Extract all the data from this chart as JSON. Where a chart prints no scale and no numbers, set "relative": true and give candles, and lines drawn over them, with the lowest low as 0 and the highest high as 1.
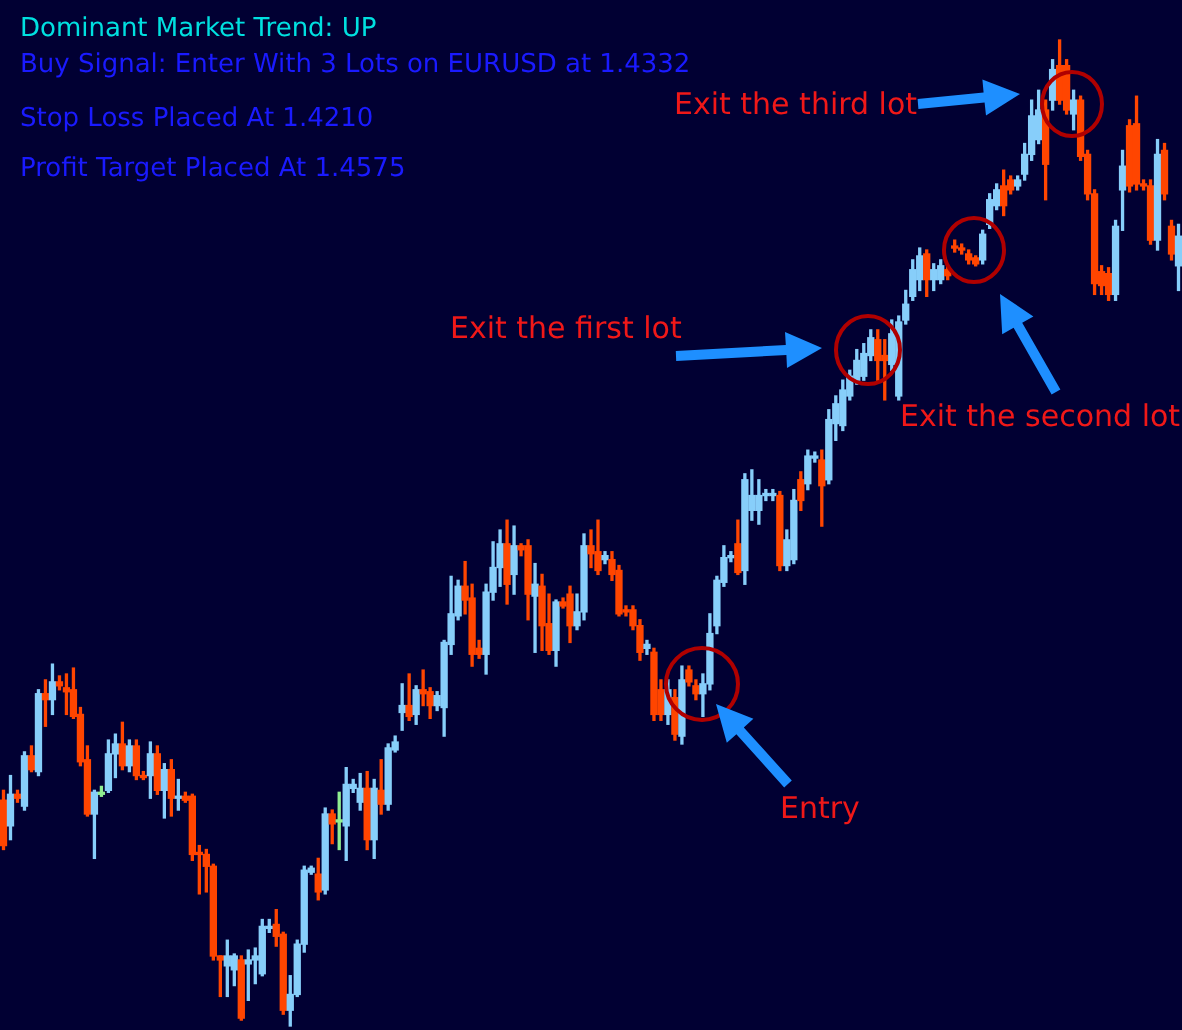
{
  "chart_data": {
    "type": "candlestick",
    "title": "Dominant Market Trend: UP",
    "annotations": [
      "Buy Signal: Enter With 3 Lots on EURUSD at 1.4332",
      "Stop Loss Placed At 1.4210",
      "Profit Target Placed At 1.4575",
      "Exit the third lot",
      "Exit the first lot",
      "Exit the second lot",
      "Entry"
    ],
    "relative": true,
    "categories": [
      null,
      null,
      null,
      null,
      null,
      null,
      null,
      null,
      null,
      null,
      null,
      null,
      null,
      null,
      null,
      null,
      null,
      null,
      null,
      null,
      null,
      null,
      null,
      null,
      null,
      null,
      null,
      null,
      null,
      null,
      null,
      null,
      null,
      null,
      null,
      null,
      null,
      null,
      null,
      null,
      null,
      null,
      null,
      null,
      null,
      null,
      null,
      null,
      null,
      null,
      null,
      null,
      null,
      null,
      null,
      null,
      null,
      null,
      null,
      null,
      null,
      null,
      null,
      null,
      null,
      null,
      null,
      null,
      null,
      null,
      null,
      null,
      null,
      null,
      null,
      null,
      null,
      null,
      null,
      null,
      null,
      null,
      null,
      null,
      null,
      null,
      null,
      null,
      null,
      null,
      null,
      null,
      null,
      null,
      null,
      null,
      null,
      null,
      null,
      null,
      null,
      null,
      null,
      null,
      null,
      null,
      null,
      null,
      null,
      null,
      null,
      null,
      null,
      null,
      null,
      null,
      null,
      null,
      null,
      null,
      null,
      null,
      null,
      null,
      null,
      null,
      null,
      null,
      null,
      null,
      null,
      null,
      null,
      null,
      null,
      null,
      null,
      null,
      null,
      null,
      null,
      null,
      null,
      null,
      null,
      null,
      null,
      null,
      null,
      null,
      null,
      null,
      null,
      null,
      null,
      null,
      null,
      null,
      null,
      null,
      null,
      null,
      null,
      null,
      null,
      null,
      null,
      null,
      null
    ],
    "ohlc": [
      [
        0.229,
        0.239,
        0.179,
        0.183
      ],
      [
        0.203,
        0.254,
        0.189,
        0.235
      ],
      [
        0.235,
        0.239,
        0.227,
        0.231
      ],
      [
        0.223,
        0.278,
        0.219,
        0.274
      ],
      [
        0.274,
        0.284,
        0.258,
        0.26
      ],
      [
        0.258,
        0.341,
        0.254,
        0.337
      ],
      [
        0.337,
        0.351,
        0.304,
        0.331
      ],
      [
        0.331,
        0.367,
        0.316,
        0.349
      ],
      [
        0.349,
        0.355,
        0.341,
        0.345
      ],
      [
        0.343,
        0.357,
        0.316,
        0.339
      ],
      [
        0.341,
        0.363,
        0.312,
        0.314
      ],
      [
        0.316,
        0.323,
        0.264,
        0.268
      ],
      [
        0.27,
        0.284,
        0.213,
        0.215
      ],
      [
        0.215,
        0.239,
        0.17,
        0.237
      ],
      [
        0.235,
        0.243,
        0.233,
        0.237
      ],
      [
        0.239,
        0.29,
        0.237,
        0.276
      ],
      [
        0.276,
        0.296,
        0.252,
        0.286
      ],
      [
        0.286,
        0.308,
        0.26,
        0.264
      ],
      [
        0.264,
        0.29,
        0.258,
        0.284
      ],
      [
        0.284,
        0.29,
        0.25,
        0.254
      ],
      [
        0.254,
        0.258,
        0.25,
        0.252
      ],
      [
        0.254,
        0.288,
        0.231,
        0.276
      ],
      [
        0.276,
        0.284,
        0.235,
        0.239
      ],
      [
        0.239,
        0.266,
        0.211,
        0.26
      ],
      [
        0.26,
        0.27,
        0.213,
        0.231
      ],
      [
        0.231,
        0.25,
        0.219,
        0.233
      ],
      [
        0.233,
        0.237,
        0.227,
        0.229
      ],
      [
        0.233,
        0.235,
        0.168,
        0.174
      ],
      [
        0.176,
        0.183,
        0.134,
        0.174
      ],
      [
        0.174,
        0.179,
        0.136,
        0.162
      ],
      [
        0.162,
        0.164,
        0.067,
        0.071
      ],
      [
        0.071,
        0.071,
        0.03,
        0.067
      ],
      [
        0.061,
        0.087,
        0.03,
        0.071
      ],
      [
        0.057,
        0.073,
        0.041,
        0.071
      ],
      [
        0.067,
        0.071,
        0.006,
        0.008
      ],
      [
        0.063,
        0.077,
        0.026,
        0.067
      ],
      [
        0.067,
        0.079,
        0.043,
        0.071
      ],
      [
        0.053,
        0.108,
        0.051,
        0.101
      ],
      [
        0.099,
        0.108,
        0.095,
        0.101
      ],
      [
        0.103,
        0.118,
        0.081,
        0.091
      ],
      [
        0.093,
        0.095,
        0.012,
        0.016
      ],
      [
        0.016,
        0.051,
        0,
        0.032
      ],
      [
        0.032,
        0.087,
        0.03,
        0.083
      ],
      [
        0.083,
        0.162,
        0.075,
        0.158
      ],
      [
        0.156,
        0.162,
        0.154,
        0.16
      ],
      [
        0.154,
        0.17,
        0.128,
        0.136
      ],
      [
        0.138,
        0.221,
        0.134,
        0.215
      ],
      [
        0.215,
        0.219,
        0.185,
        0.205
      ],
      [
        0.207,
        0.237,
        0.179,
        0.209
      ],
      [
        0.203,
        0.262,
        0.168,
        0.245
      ],
      [
        0.241,
        0.25,
        0.237,
        0.245
      ],
      [
        0.227,
        0.256,
        0.219,
        0.241
      ],
      [
        0.241,
        0.258,
        0.179,
        0.189
      ],
      [
        0.189,
        0.25,
        0.17,
        0.241
      ],
      [
        0.239,
        0.27,
        0.215,
        0.225
      ],
      [
        0.225,
        0.286,
        0.219,
        0.282
      ],
      [
        0.28,
        0.294,
        0.278,
        0.288
      ],
      [
        0.318,
        0.347,
        0.3,
        0.325
      ],
      [
        0.325,
        0.357,
        0.31,
        0.314
      ],
      [
        0.316,
        0.345,
        0.306,
        0.341
      ],
      [
        0.341,
        0.361,
        0.325,
        0.337
      ],
      [
        0.339,
        0.343,
        0.312,
        0.325
      ],
      [
        0.325,
        0.339,
        0.32,
        0.335
      ],
      [
        0.323,
        0.391,
        0.294,
        0.389
      ],
      [
        0.387,
        0.456,
        0.377,
        0.418
      ],
      [
        0.416,
        0.452,
        0.412,
        0.446
      ],
      [
        0.446,
        0.471,
        0.418,
        0.432
      ],
      [
        0.434,
        0.448,
        0.365,
        0.377
      ],
      [
        0.383,
        0.391,
        0.373,
        0.377
      ],
      [
        0.377,
        0.448,
        0.357,
        0.44
      ],
      [
        0.44,
        0.491,
        0.432,
        0.465
      ],
      [
        0.465,
        0.503,
        0.446,
        0.489
      ],
      [
        0.489,
        0.513,
        0.428,
        0.448
      ],
      [
        0.458,
        0.507,
        0.438,
        0.487
      ],
      [
        0.487,
        0.489,
        0.477,
        0.483
      ],
      [
        0.487,
        0.493,
        0.412,
        0.438
      ],
      [
        0.436,
        0.469,
        0.379,
        0.448
      ],
      [
        0.446,
        0.458,
        0.381,
        0.406
      ],
      [
        0.408,
        0.438,
        0.377,
        0.381
      ],
      [
        0.381,
        0.432,
        0.365,
        0.43
      ],
      [
        0.43,
        0.434,
        0.424,
        0.426
      ],
      [
        0.438,
        0.446,
        0.389,
        0.406
      ],
      [
        0.406,
        0.438,
        0.402,
        0.42
      ],
      [
        0.42,
        0.499,
        0.412,
        0.487
      ],
      [
        0.487,
        0.503,
        0.465,
        0.479
      ],
      [
        0.481,
        0.513,
        0.458,
        0.462
      ],
      [
        0.473,
        0.481,
        0.469,
        0.477
      ],
      [
        0.473,
        0.481,
        0.452,
        0.458
      ],
      [
        0.462,
        0.467,
        0.416,
        0.418
      ],
      [
        0.422,
        0.426,
        0.416,
        0.42
      ],
      [
        0.422,
        0.426,
        0.402,
        0.406
      ],
      [
        0.406,
        0.412,
        0.371,
        0.379
      ],
      [
        0.383,
        0.391,
        0.377,
        0.387
      ],
      [
        0.379,
        0.383,
        0.31,
        0.316
      ],
      [
        0.341,
        0.351,
        0.31,
        0.316
      ],
      [
        0.316,
        0.351,
        0.306,
        0.341
      ],
      [
        0.333,
        0.341,
        0.29,
        0.296
      ],
      [
        0.294,
        0.365,
        0.286,
        0.351
      ],
      [
        0.361,
        0.365,
        0.345,
        0.349
      ],
      [
        0.345,
        0.351,
        0.331,
        0.337
      ],
      [
        0.337,
        0.357,
        0.314,
        0.347
      ],
      [
        0.347,
        0.418,
        0.341,
        0.398
      ],
      [
        0.406,
        0.456,
        0.398,
        0.452
      ],
      [
        0.45,
        0.487,
        0.446,
        0.475
      ],
      [
        0.475,
        0.481,
        0.471,
        0.477
      ],
      [
        0.489,
        0.513,
        0.458,
        0.46
      ],
      [
        0.462,
        0.56,
        0.448,
        0.554
      ],
      [
        0.523,
        0.564,
        0.513,
        0.538
      ],
      [
        0.523,
        0.554,
        0.509,
        0.538
      ],
      [
        0.538,
        0.544,
        0.533,
        0.54
      ],
      [
        0.538,
        0.544,
        0.533,
        0.54
      ],
      [
        0.538,
        0.542,
        0.462,
        0.467
      ],
      [
        0.467,
        0.503,
        0.462,
        0.493
      ],
      [
        0.473,
        0.544,
        0.469,
        0.533
      ],
      [
        0.554,
        0.562,
        0.523,
        0.533
      ],
      [
        0.55,
        0.584,
        0.544,
        0.578
      ],
      [
        0.576,
        0.582,
        0.572,
        0.578
      ],
      [
        0.574,
        0.584,
        0.507,
        0.548
      ],
      [
        0.554,
        0.625,
        0.55,
        0.615
      ],
      [
        0.611,
        0.639,
        0.594,
        0.631
      ],
      [
        0.609,
        0.655,
        0.604,
        0.645
      ],
      [
        0.639,
        0.665,
        0.635,
        0.659
      ],
      [
        0.655,
        0.686,
        0.651,
        0.675
      ],
      [
        0.659,
        0.692,
        0.655,
        0.682
      ],
      [
        0.68,
        0.706,
        0.675,
        0.698
      ],
      [
        0.696,
        0.706,
        0.655,
        0.675
      ],
      [
        0.68,
        0.696,
        0.635,
        0.675
      ],
      [
        0.671,
        0.716,
        0.665,
        0.702
      ],
      [
        0.639,
        0.72,
        0.635,
        0.714
      ],
      [
        0.716,
        0.746,
        0.712,
        0.732
      ],
      [
        0.74,
        0.777,
        0.736,
        0.767
      ],
      [
        0.757,
        0.789,
        0.746,
        0.781
      ],
      [
        0.783,
        0.787,
        0.74,
        0.757
      ],
      [
        0.757,
        0.773,
        0.746,
        0.767
      ],
      [
        0.757,
        0.777,
        0.753,
        0.771
      ],
      [
        0.767,
        0.771,
        0.757,
        0.761
      ],
      [
        0.791,
        0.797,
        0.785,
        0.789
      ],
      [
        0.789,
        0.793,
        0.783,
        0.787
      ],
      [
        0.783,
        0.787,
        0.773,
        0.777
      ],
      [
        0.779,
        0.781,
        0.771,
        0.773
      ],
      [
        0.777,
        0.807,
        0.773,
        0.803
      ],
      [
        0.813,
        0.844,
        0.809,
        0.838
      ],
      [
        0.832,
        0.854,
        0.828,
        0.848
      ],
      [
        0.852,
        0.868,
        0.822,
        0.832
      ],
      [
        0.858,
        0.862,
        0.844,
        0.848
      ],
      [
        0.852,
        0.862,
        0.848,
        0.858
      ],
      [
        0.864,
        0.895,
        0.858,
        0.884
      ],
      [
        0.884,
        0.939,
        0.878,
        0.923
      ],
      [
        0.899,
        0.949,
        0.895,
        0.929
      ],
      [
        0.929,
        0.939,
        0.838,
        0.874
      ],
      [
        0.939,
        0.98,
        0.929,
        0.97
      ],
      [
        0.974,
        1,
        0.935,
        0.939
      ],
      [
        0.974,
        0.98,
        0.925,
        0.929
      ],
      [
        0.925,
        0.949,
        0.909,
        0.939
      ],
      [
        0.939,
        0.943,
        0.878,
        0.882
      ],
      [
        0.884,
        0.888,
        0.838,
        0.844
      ],
      [
        0.844,
        0.848,
        0.742,
        0.753
      ],
      [
        0.765,
        0.771,
        0.742,
        0.751
      ],
      [
        0.763,
        0.769,
        0.736,
        0.742
      ],
      [
        0.742,
        0.817,
        0.736,
        0.811
      ],
      [
        0.848,
        0.888,
        0.807,
        0.872
      ],
      [
        0.913,
        0.919,
        0.846,
        0.852
      ],
      [
        0.915,
        0.943,
        0.848,
        0.854
      ],
      [
        0.854,
        0.858,
        0.848,
        0.852
      ],
      [
        0.852,
        0.858,
        0.793,
        0.797
      ],
      [
        0.797,
        0.899,
        0.787,
        0.884
      ],
      [
        0.888,
        0.895,
        0.838,
        0.844
      ],
      [
        0.811,
        0.817,
        0.777,
        0.783
      ],
      [
        0.771,
        0.813,
        0.746,
        0.801
      ]
    ],
    "colors": [
      "#ff4500",
      "#87cefa",
      "#ff4500",
      "#87cefa",
      "#ff4500",
      "#87cefa",
      "#ff4500",
      "#87cefa",
      "#ff4500",
      "#ff4500",
      "#ff4500",
      "#ff4500",
      "#ff4500",
      "#87cefa",
      "#90ee90",
      "#87cefa",
      "#87cefa",
      "#ff4500",
      "#87cefa",
      "#ff4500",
      "#ff4500",
      "#87cefa",
      "#ff4500",
      "#87cefa",
      "#ff4500",
      "#87cefa",
      "#ff4500",
      "#ff4500",
      "#ff4500",
      "#ff4500",
      "#ff4500",
      "#ff4500",
      "#87cefa",
      "#87cefa",
      "#ff4500",
      "#87cefa",
      "#87cefa",
      "#87cefa",
      "#87cefa",
      "#ff4500",
      "#ff4500",
      "#87cefa",
      "#87cefa",
      "#87cefa",
      "#87cefa",
      "#ff4500",
      "#87cefa",
      "#ff4500",
      "#90ee90",
      "#87cefa",
      "#87cefa",
      "#87cefa",
      "#ff4500",
      "#87cefa",
      "#ff4500",
      "#87cefa",
      "#87cefa",
      "#87cefa",
      "#ff4500",
      "#87cefa",
      "#ff4500",
      "#ff4500",
      "#87cefa",
      "#87cefa",
      "#87cefa",
      "#87cefa",
      "#ff4500",
      "#ff4500",
      "#ff4500",
      "#87cefa",
      "#87cefa",
      "#87cefa",
      "#ff4500",
      "#87cefa",
      "#ff4500",
      "#ff4500",
      "#87cefa",
      "#ff4500",
      "#ff4500",
      "#87cefa",
      "#ff4500",
      "#ff4500",
      "#87cefa",
      "#87cefa",
      "#ff4500",
      "#ff4500",
      "#87cefa",
      "#ff4500",
      "#ff4500",
      "#ff4500",
      "#ff4500",
      "#ff4500",
      "#87cefa",
      "#ff4500",
      "#ff4500",
      "#87cefa",
      "#ff4500",
      "#87cefa",
      "#ff4500",
      "#ff4500",
      "#87cefa",
      "#87cefa",
      "#87cefa",
      "#87cefa",
      "#87cefa",
      "#ff4500",
      "#87cefa",
      "#87cefa",
      "#87cefa",
      "#87cefa",
      "#87cefa",
      "#ff4500",
      "#87cefa",
      "#87cefa",
      "#ff4500",
      "#87cefa",
      "#87cefa",
      "#ff4500",
      "#87cefa",
      "#87cefa",
      "#87cefa",
      "#87cefa",
      "#87cefa",
      "#87cefa",
      "#87cefa",
      "#ff4500",
      "#ff4500",
      "#87cefa",
      "#87cefa",
      "#87cefa",
      "#87cefa",
      "#87cefa",
      "#ff4500",
      "#87cefa",
      "#87cefa",
      "#ff4500",
      "#ff4500",
      "#ff4500",
      "#ff4500",
      "#ff4500",
      "#87cefa",
      "#87cefa",
      "#87cefa",
      "#ff4500",
      "#ff4500",
      "#87cefa",
      "#87cefa",
      "#87cefa",
      "#87cefa",
      "#ff4500",
      "#87cefa",
      "#ff4500",
      "#ff4500",
      "#87cefa",
      "#ff4500",
      "#ff4500",
      "#ff4500",
      "#ff4500",
      "#ff4500",
      "#87cefa",
      "#87cefa",
      "#ff4500",
      "#ff4500",
      "#ff4500",
      "#ff4500",
      "#87cefa",
      "#ff4500",
      "#ff4500",
      "#87cefa"
    ]
  }
}
